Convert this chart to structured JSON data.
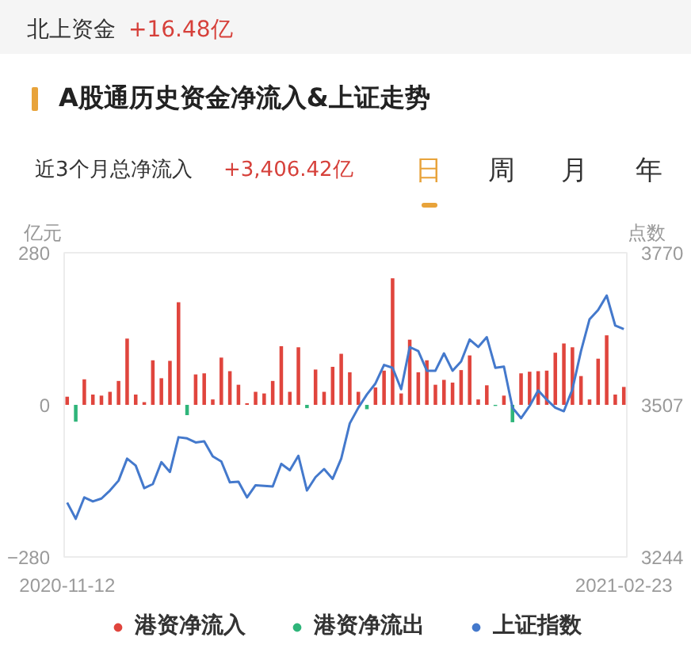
{
  "chart_data": {
    "type": "bar",
    "title": "A股通历史资金净流入&上证走势",
    "annotations": [
      "北上资金",
      "+16.48亿",
      "近3个月总净流入",
      "+3,406.42亿",
      "日",
      "周",
      "月",
      "年"
    ],
    "ylabel": "亿元",
    "y2label": "点数",
    "categories": [
      "2020-11-12",
      null,
      null,
      null,
      null,
      null,
      null,
      null,
      null,
      null,
      null,
      null,
      null,
      null,
      null,
      null,
      null,
      null,
      null,
      null,
      null,
      null,
      null,
      null,
      null,
      null,
      null,
      null,
      null,
      null,
      null,
      null,
      null,
      null,
      null,
      null,
      null,
      null,
      null,
      null,
      null,
      null,
      null,
      null,
      null,
      null,
      null,
      null,
      null,
      null,
      null,
      null,
      null,
      null,
      null,
      null,
      null,
      null,
      null,
      null,
      null,
      null,
      null,
      null,
      null,
      "2021-02-23"
    ],
    "series": [
      {
        "name": "港资净流入",
        "color": "#e0453d",
        "values": [
          15,
          null,
          47,
          19,
          17,
          24,
          44,
          122,
          19,
          5,
          82,
          49,
          81,
          189,
          null,
          56,
          58,
          10,
          87,
          62,
          37,
          3,
          24,
          21,
          44,
          108,
          24,
          106,
          null,
          65,
          24,
          70,
          94,
          60,
          24,
          null,
          32,
          63,
          233,
          21,
          120,
          60,
          82,
          37,
          46,
          41,
          64,
          91,
          10,
          36,
          null,
          17,
          null,
          58,
          61,
          62,
          63,
          96,
          113,
          106,
          53,
          10,
          85,
          128,
          19,
          33
        ]
      },
      {
        "name": "港资净流出",
        "color": "#2fb57a",
        "values": [
          null,
          -31,
          null,
          null,
          null,
          null,
          null,
          null,
          null,
          null,
          null,
          null,
          null,
          null,
          -19,
          null,
          null,
          null,
          null,
          null,
          null,
          null,
          null,
          null,
          null,
          null,
          null,
          null,
          -6,
          null,
          null,
          null,
          null,
          null,
          null,
          -8,
          null,
          null,
          null,
          null,
          null,
          null,
          null,
          null,
          null,
          null,
          null,
          null,
          null,
          null,
          -2,
          null,
          -32,
          null,
          null,
          null,
          null,
          null,
          null,
          null,
          null,
          null,
          null,
          null,
          null,
          null
        ]
      },
      {
        "name": "上证指数",
        "type": "line",
        "axis": "y2",
        "color": "#4479cc",
        "values": [
          3338,
          3310,
          3347,
          3340,
          3345,
          3359,
          3376,
          3414,
          3402,
          3363,
          3370,
          3408,
          3391,
          3451,
          3449,
          3442,
          3444,
          3418,
          3409,
          3373,
          3374,
          3347,
          3368,
          3367,
          3366,
          3405,
          3394,
          3419,
          3359,
          3382,
          3396,
          3379,
          3414,
          3475,
          3502,
          3525,
          3544,
          3576,
          3571,
          3534,
          3607,
          3600,
          3566,
          3566,
          3596,
          3566,
          3582,
          3620,
          3607,
          3624,
          3571,
          3573,
          3502,
          3484,
          3505,
          3532,
          3516,
          3502,
          3496,
          3534,
          3600,
          3655,
          3671,
          3696,
          3644,
          3638
        ]
      }
    ],
    "ylim": [
      -280,
      280
    ],
    "yticks": [
      -280,
      0,
      280
    ],
    "y2lim": [
      3244,
      3770
    ],
    "y2ticks": [
      3244,
      3507,
      3770
    ],
    "legend": "bottom"
  }
}
